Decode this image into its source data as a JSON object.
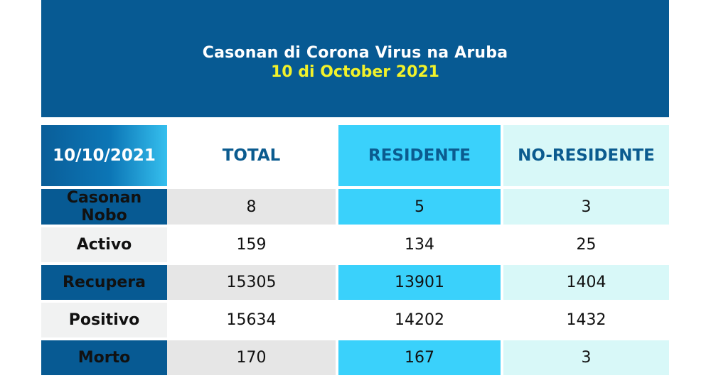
{
  "header": {
    "title": "Casonan di Corona Virus na Aruba",
    "date": "10 di October 2021"
  },
  "table": {
    "columns": [
      "10/10/2021",
      "TOTAL",
      "RESIDENTE",
      "NO-RESIDENTE"
    ],
    "rows": [
      {
        "label": "Casonan Nobo",
        "total": "8",
        "residente": "5",
        "no_residente": "3"
      },
      {
        "label": "Activo",
        "total": "159",
        "residente": "134",
        "no_residente": "25"
      },
      {
        "label": "Recupera",
        "total": "15305",
        "residente": "13901",
        "no_residente": "1404"
      },
      {
        "label": "Positivo",
        "total": "15634",
        "residente": "14202",
        "no_residente": "1432"
      },
      {
        "label": "Morto",
        "total": "170",
        "residente": "167",
        "no_residente": "3"
      }
    ]
  },
  "colors": {
    "header_bg": "#075a93",
    "date_yellow": "#f2f22a",
    "residente_cyan": "#3ad1fb",
    "no_residente_mint": "#d8f8f8"
  }
}
